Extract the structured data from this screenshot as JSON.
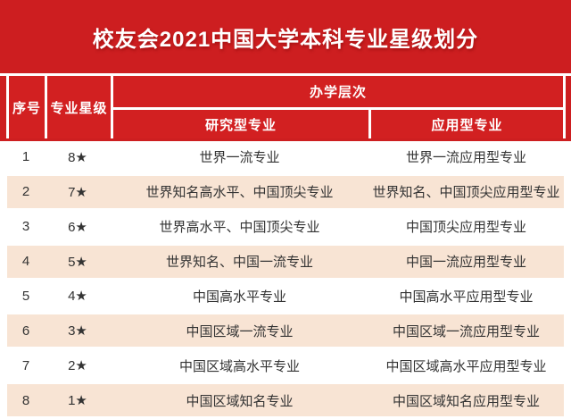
{
  "colors": {
    "brand_red": "#cd1e20",
    "header_cell_red": "#d22021",
    "row_alt_peach": "#f8e4d4",
    "body_text": "#333333",
    "header_text": "#ffffff"
  },
  "chart_data": {
    "type": "table",
    "title": "校友会2021中国大学本科专业星级划分",
    "header": {
      "serial": "序号",
      "star": "专业星级",
      "group": "办学层次",
      "research": "研究型专业",
      "applied": "应用型专业"
    },
    "columns": [
      "序号",
      "专业星级",
      "研究型专业",
      "应用型专业"
    ],
    "column_group": {
      "label": "办学层次",
      "covers": [
        "研究型专业",
        "应用型专业"
      ]
    },
    "rows": [
      [
        "1",
        "8★",
        "世界一流专业",
        "世界一流应用型专业"
      ],
      [
        "2",
        "7★",
        "世界知名高水平、中国顶尖专业",
        "世界知名、中国顶尖应用型专业"
      ],
      [
        "3",
        "6★",
        "世界高水平、中国顶尖专业",
        "中国顶尖应用型专业"
      ],
      [
        "4",
        "5★",
        "世界知名、中国一流专业",
        "中国一流应用型专业"
      ],
      [
        "5",
        "4★",
        "中国高水平专业",
        "中国高水平应用型专业"
      ],
      [
        "6",
        "3★",
        "中国区域一流专业",
        "中国区域一流应用型专业"
      ],
      [
        "7",
        "2★",
        "中国区域高水平专业",
        "中国区域高水平应用型专业"
      ],
      [
        "8",
        "1★",
        "中国区域知名专业",
        "中国区域知名应用型专业"
      ]
    ]
  }
}
